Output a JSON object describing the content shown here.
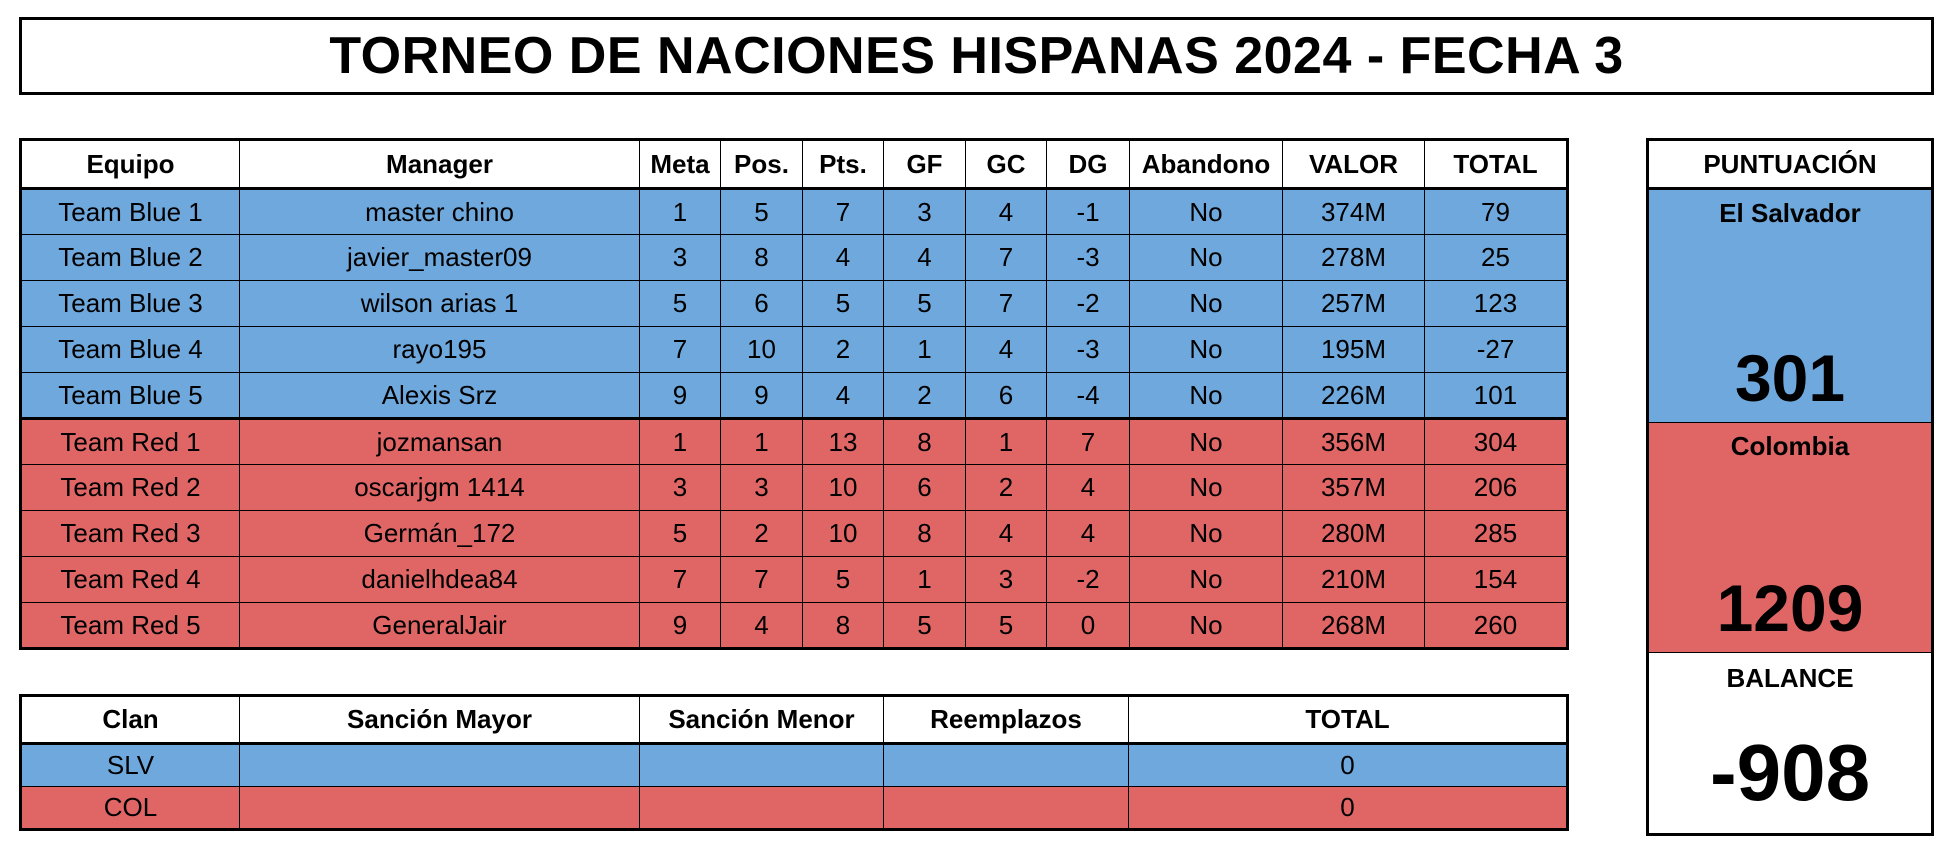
{
  "title": "TORNEO DE NACIONES HISPANAS 2024 - FECHA 3",
  "colors": {
    "blue": "#6fa8dc",
    "red": "#e06666"
  },
  "main_table": {
    "headers": [
      "Equipo",
      "Manager",
      "Meta",
      "Pos.",
      "Pts.",
      "GF",
      "GC",
      "DG",
      "Abandono",
      "VALOR",
      "TOTAL"
    ],
    "rows": [
      [
        "Team Blue 1",
        "master chino",
        "1",
        "5",
        "7",
        "3",
        "4",
        "-1",
        "No",
        "374M",
        "79"
      ],
      [
        "Team Blue 2",
        "javier_master09",
        "3",
        "8",
        "4",
        "4",
        "7",
        "-3",
        "No",
        "278M",
        "25"
      ],
      [
        "Team Blue 3",
        "wilson arias 1",
        "5",
        "6",
        "5",
        "5",
        "7",
        "-2",
        "No",
        "257M",
        "123"
      ],
      [
        "Team Blue 4",
        "rayo195",
        "7",
        "10",
        "2",
        "1",
        "4",
        "-3",
        "No",
        "195M",
        "-27"
      ],
      [
        "Team Blue 5",
        "Alexis Srz",
        "9",
        "9",
        "4",
        "2",
        "6",
        "-4",
        "No",
        "226M",
        "101"
      ],
      [
        "Team Red 1",
        "jozmansan",
        "1",
        "1",
        "13",
        "8",
        "1",
        "7",
        "No",
        "356M",
        "304"
      ],
      [
        "Team Red 2",
        "oscarjgm 1414",
        "3",
        "3",
        "10",
        "6",
        "2",
        "4",
        "No",
        "357M",
        "206"
      ],
      [
        "Team Red 3",
        "Germán_172",
        "5",
        "2",
        "10",
        "8",
        "4",
        "4",
        "No",
        "280M",
        "285"
      ],
      [
        "Team Red 4",
        "danielhdea84",
        "7",
        "7",
        "5",
        "1",
        "3",
        "-2",
        "No",
        "210M",
        "154"
      ],
      [
        "Team Red 5",
        "GeneralJair",
        "9",
        "4",
        "8",
        "5",
        "5",
        "0",
        "No",
        "268M",
        "260"
      ]
    ]
  },
  "sanctions_table": {
    "headers": [
      "Clan",
      "Sanción Mayor",
      "Sanción Menor",
      "Reemplazos",
      "TOTAL"
    ],
    "rows": [
      [
        "SLV",
        "",
        "",
        "",
        "0"
      ],
      [
        "COL",
        "",
        "",
        "",
        "0"
      ]
    ]
  },
  "score_panel": {
    "header": "PUNTUACIÓN",
    "team_a": {
      "name": "El Salvador",
      "score": "301"
    },
    "team_b": {
      "name": "Colombia",
      "score": "1209"
    },
    "balance_label": "BALANCE",
    "balance_value": "-908"
  }
}
